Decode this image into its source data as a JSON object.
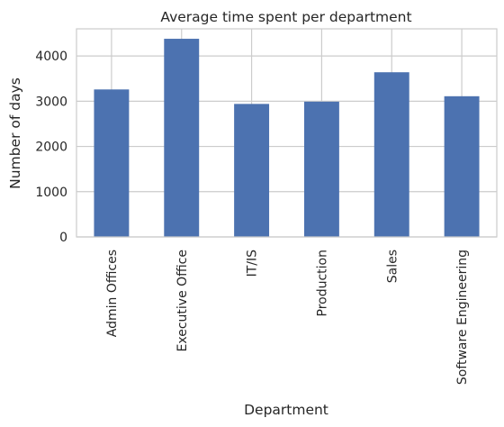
{
  "chart_data": {
    "type": "bar",
    "title": "Average time spent per department",
    "xlabel": "Department",
    "ylabel": "Number of days",
    "categories": [
      "Admin Offices",
      "Executive Office",
      "IT/IS",
      "Production",
      "Sales",
      "Software Engineering"
    ],
    "values": [
      3260,
      4380,
      2940,
      2990,
      3640,
      3110
    ],
    "ylim": [
      0,
      4600
    ],
    "yticks": [
      0,
      1000,
      2000,
      3000,
      4000
    ],
    "ytick_labels": [
      "0",
      "1000",
      "2000",
      "3000",
      "4000"
    ],
    "grid": true,
    "bar_color": "#4c72b0",
    "grid_color": "#cccccc"
  }
}
